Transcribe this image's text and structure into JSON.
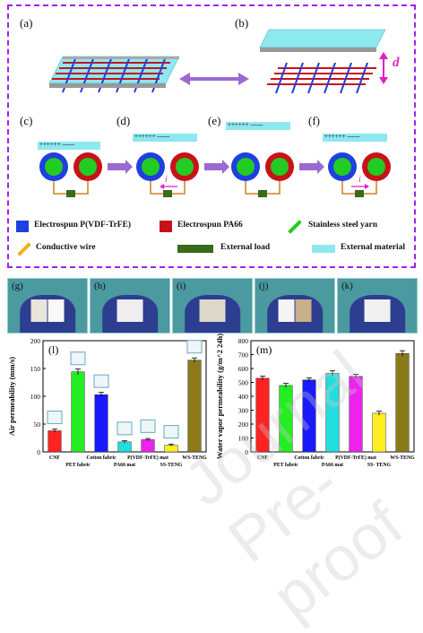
{
  "panels": {
    "a": "(a)",
    "b": "(b)",
    "c": "(c)",
    "d": "(d)",
    "e": "(e)",
    "f": "(f)",
    "g": "(g)",
    "h": "(h)",
    "i": "(i)",
    "j": "(j)",
    "k": "(k)",
    "l": "(l)",
    "m": "(m)"
  },
  "diagram": {
    "distance_label": "d",
    "charge_label": "++++++ ------",
    "current_label": "i"
  },
  "legend": {
    "items": [
      {
        "label": "Electrospun P(VDF-TrFE)",
        "color": "#1f3fe0"
      },
      {
        "label": "Electrospun PA66",
        "color": "#c8121a"
      },
      {
        "label": "Stainless steel yarn",
        "color": "#22cc22"
      },
      {
        "label": "Conductive wire",
        "color": "#f0b020"
      },
      {
        "label": "External load",
        "color": "#3a6a1a"
      },
      {
        "label": "External material",
        "color": "#8ee8f0"
      }
    ]
  },
  "colors": {
    "border": "#a020f0",
    "arrow": "#9a6ad0",
    "d_arrow": "#e020c0"
  },
  "chart_data": [
    {
      "type": "bar",
      "panel": "(l)",
      "categories": [
        "CNF",
        "PET fabric",
        "Cotton fabric",
        "PA66 mat",
        "P(VDF-TrFE) mat",
        "SS-TENG",
        "WS-TENG"
      ],
      "values": [
        38,
        144,
        103,
        18,
        22,
        12,
        165
      ],
      "errors": [
        3,
        5,
        4,
        2,
        2,
        2,
        4
      ],
      "colors": [
        "#ff2222",
        "#22ee22",
        "#1a1aff",
        "#22dddd",
        "#ee22ee",
        "#ffee22",
        "#8a7a1a"
      ],
      "ylabel": "Air permeability (mm/s)",
      "ylim": [
        0,
        200
      ],
      "yticks": [
        "0",
        "50",
        "100",
        "150",
        "200"
      ]
    },
    {
      "type": "bar",
      "panel": "(m)",
      "categories": [
        "CNF",
        "PET fabric",
        "Cotton fabric",
        "PA66 mat",
        "P(VDF-TrFE) mat",
        "SS- TENG",
        "WS-TENG"
      ],
      "values": [
        530,
        478,
        518,
        565,
        543,
        278,
        708
      ],
      "errors": [
        15,
        15,
        15,
        20,
        15,
        15,
        20
      ],
      "colors": [
        "#ff2222",
        "#22ee22",
        "#1a1aff",
        "#22dddd",
        "#ee22ee",
        "#ffee22",
        "#8a7a1a"
      ],
      "ylabel": "Water vapor permeability (g/m^2 24h)",
      "ylim": [
        0,
        800
      ],
      "yticks": [
        "0",
        "100",
        "200",
        "300",
        "400",
        "500",
        "600",
        "700",
        "800"
      ]
    }
  ]
}
